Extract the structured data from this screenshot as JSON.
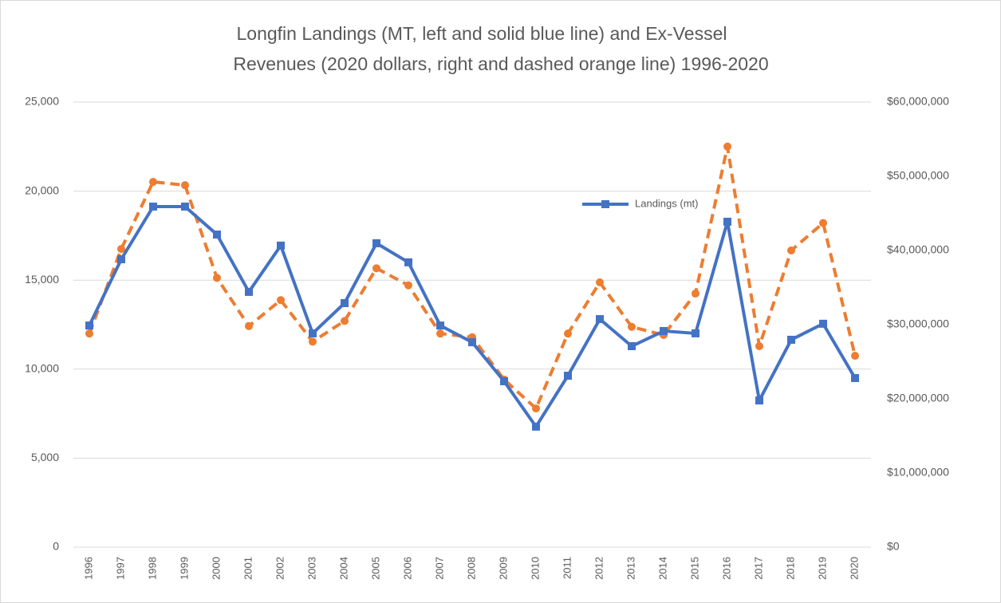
{
  "chart_data": {
    "type": "line",
    "title": [
      "Longfin Landings (MT, left and solid blue line) and Ex-Vessel",
      "Revenues (2020 dollars, right and dashed orange line) 1996-2020"
    ],
    "categories": [
      "1996",
      "1997",
      "1998",
      "1999",
      "2000",
      "2001",
      "2002",
      "2003",
      "2004",
      "2005",
      "2006",
      "2007",
      "2008",
      "2009",
      "2010",
      "2011",
      "2012",
      "2013",
      "2014",
      "2015",
      "2016",
      "2017",
      "2018",
      "2019",
      "2020"
    ],
    "series": [
      {
        "name": "Landings (mt)",
        "color": "#4472c4",
        "style": "solid",
        "marker": "square",
        "values": [
          12450,
          16170,
          19130,
          19130,
          17560,
          14340,
          16940,
          12010,
          13710,
          17070,
          16000,
          12450,
          11510,
          9320,
          6770,
          9630,
          12810,
          11290,
          12140,
          12010,
          18280,
          8240,
          11650,
          12550,
          9500
        ]
      },
      {
        "color": "#ed7d31",
        "style": "dashed",
        "marker": "circle",
        "axis": "y2",
        "values": [
          28800000,
          40200000,
          49250000,
          48800000,
          36300000,
          29800000,
          33300000,
          27700000,
          30500000,
          37600000,
          35300000,
          28800000,
          28300000,
          22600000,
          18700000,
          28800000,
          35700000,
          29700000,
          28600000,
          34200000,
          54000000,
          27100000,
          40000000,
          43700000,
          25800000
        ]
      }
    ],
    "ylim": [
      0,
      25000
    ],
    "yticks": [
      0,
      {
        "value": 5000,
        "label": "5,000"
      },
      {
        "value": 10000,
        "label": "10,000"
      },
      {
        "value": 15000,
        "label": "15,000"
      },
      {
        "value": 20000,
        "label": "20,000"
      },
      {
        "value": 25000,
        "label": "25,000"
      }
    ],
    "y2lim": [
      0,
      60000000
    ],
    "y2ticks": [
      {
        "value": 0,
        "label": "$0"
      },
      {
        "value": 10000000,
        "label": "$10,000,000"
      },
      {
        "value": 20000000,
        "label": "$20,000,000"
      },
      {
        "value": 30000000,
        "label": "$30,000,000"
      },
      {
        "value": 40000000,
        "label": "$40,000,000"
      },
      {
        "value": 50000000,
        "label": "$50,000,000"
      },
      {
        "value": 60000000,
        "label": "$60,000,000"
      }
    ],
    "grid": true,
    "legend": "upper-right-inside"
  }
}
